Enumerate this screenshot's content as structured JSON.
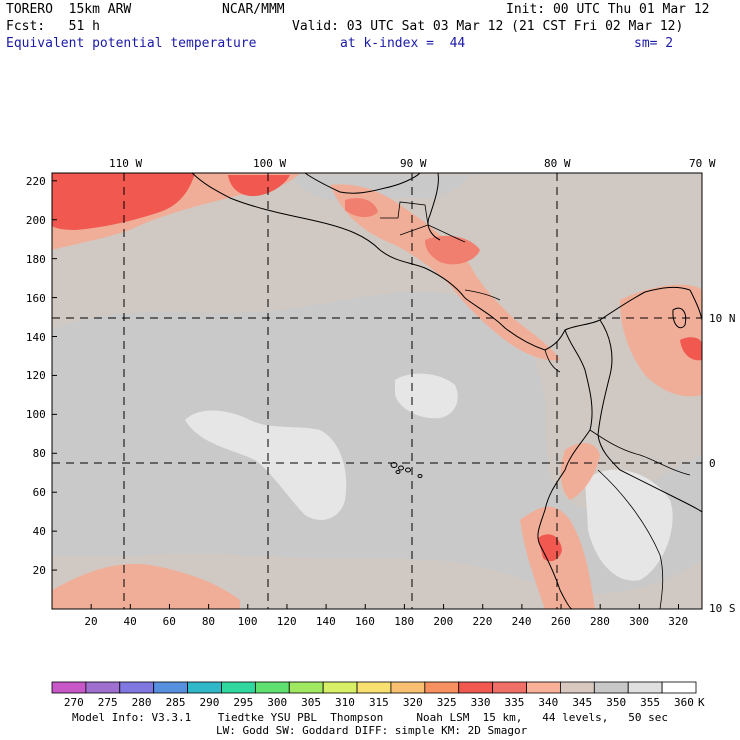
{
  "header": {
    "model": "TORERO  15km ARW",
    "center": "NCAR/MMM",
    "init": "Init: 00 UTC Thu 01 Mar 12",
    "fcst": "Fcst:   51 h",
    "valid": "Valid: 03 UTC Sat 03 Mar 12 (21 CST Fri 02 Mar 12)",
    "field": "Equivalent potential temperature",
    "level": "at k-index =  44",
    "smooth": "sm= 2"
  },
  "map": {
    "lon_labels": [
      "110 W",
      "100 W",
      "90 W",
      "80 W",
      "70 W"
    ],
    "lat_labels": [
      "10 N",
      "0",
      "10 S"
    ],
    "x_ticks": [
      "20",
      "40",
      "60",
      "80",
      "100",
      "120",
      "140",
      "160",
      "180",
      "200",
      "220",
      "240",
      "260",
      "280",
      "300",
      "320"
    ],
    "y_ticks": [
      "20",
      "40",
      "60",
      "80",
      "100",
      "120",
      "140",
      "160",
      "180",
      "200",
      "220"
    ]
  },
  "colorbar": {
    "labels": [
      "270",
      "275",
      "280",
      "285",
      "290",
      "295",
      "300",
      "305",
      "310",
      "315",
      "320",
      "325",
      "330",
      "335",
      "340",
      "345",
      "350",
      "355",
      "360"
    ],
    "unit": "K",
    "colors": [
      "#c858c8",
      "#a070d0",
      "#8078e0",
      "#5890e0",
      "#30b8c8",
      "#30d8a0",
      "#60e070",
      "#a0e860",
      "#d8f068",
      "#f8e070",
      "#f8c070",
      "#f89060",
      "#f05850",
      "#f07068",
      "#f8b098",
      "#d8c8c0",
      "#c8c8c8",
      "#e0e0e0",
      "#ffffff"
    ]
  },
  "footer": {
    "line1": "Model Info: V3.3.1    Tiedtke YSU PBL  Thompson     Noah LSM  15 km,   44 levels,   50 sec",
    "line2": "LW: Godd SW: Goddard DIFF: simple KM: 2D Smagor"
  }
}
